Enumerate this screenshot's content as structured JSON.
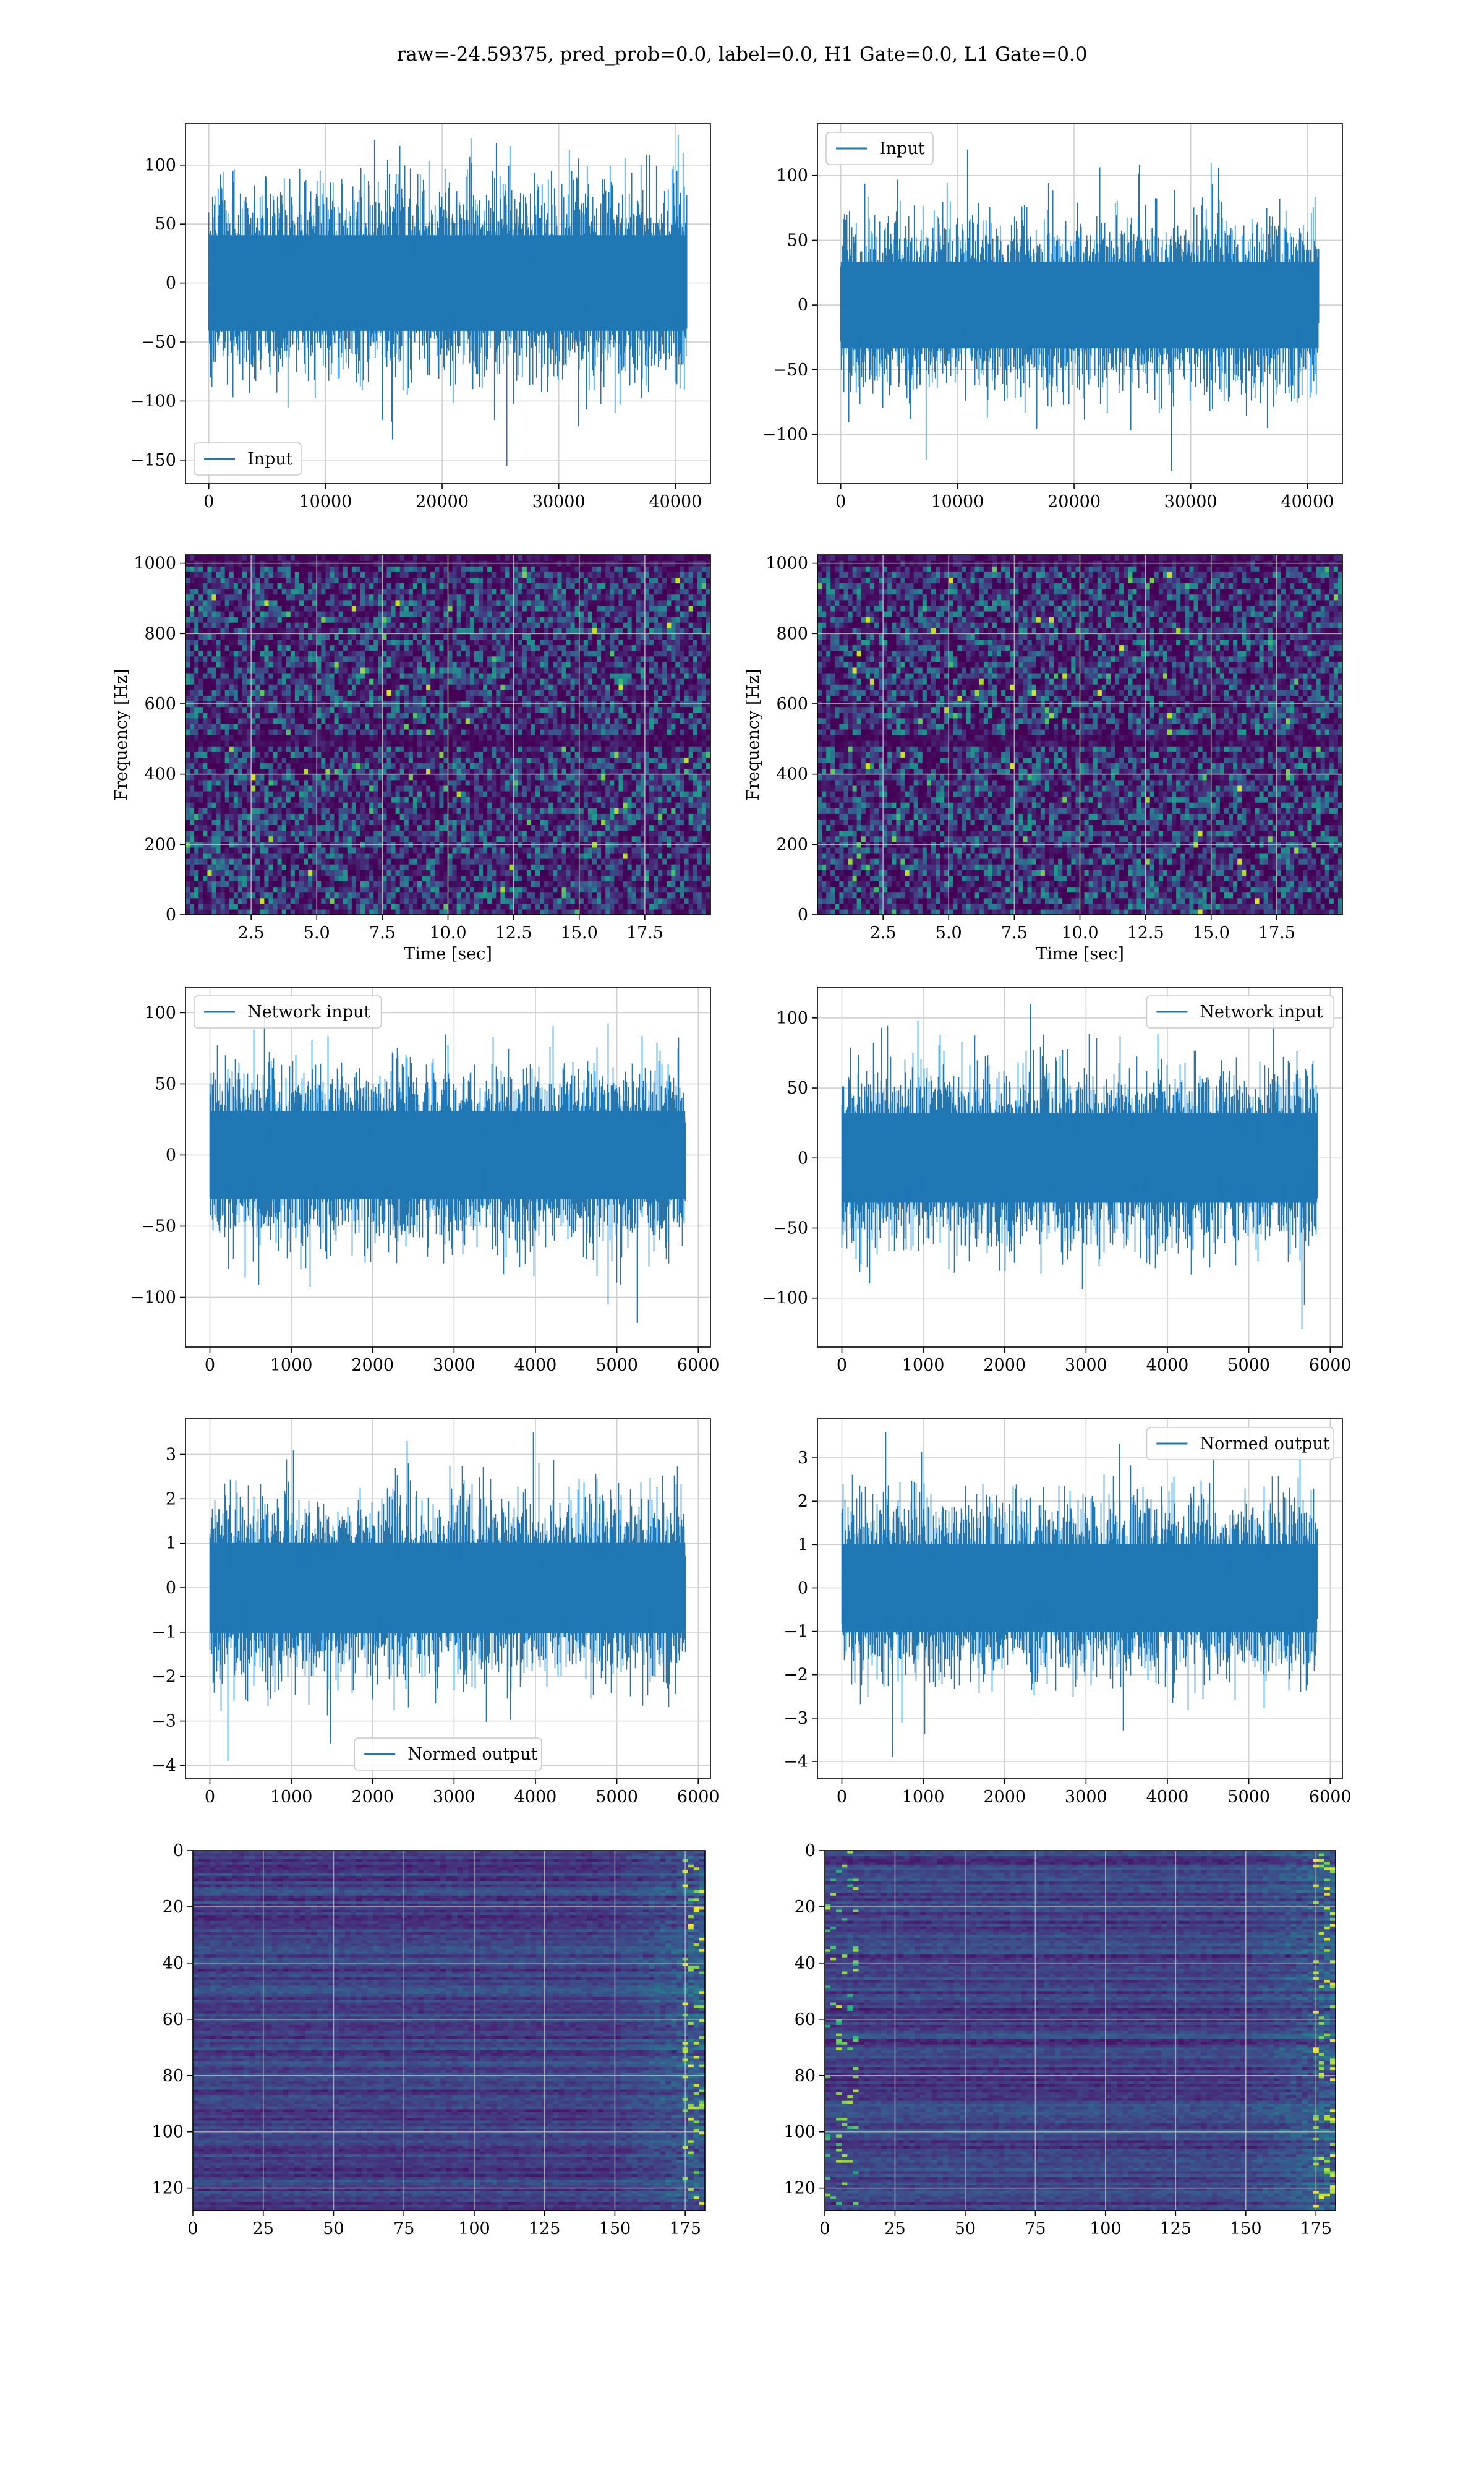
{
  "figure": {
    "title": "raw=-24.59375, pred_prob=0.0, label=0.0, H1 Gate=0.0, L1 Gate=0.0"
  },
  "colors": {
    "line": "#1f77b4",
    "grid": "#d0d0d0",
    "axes": "#000000",
    "viridis_low": "#440154",
    "viridis_mid": "#21918c",
    "viridis_high": "#fde725"
  },
  "chart_data": [
    {
      "id": "input-left",
      "type": "line",
      "legend": "Input",
      "legend_pos": "lower-left",
      "xlim": [
        -2000,
        43000
      ],
      "ylim": [
        -170,
        135
      ],
      "xticks": [
        0,
        10000,
        20000,
        30000,
        40000
      ],
      "yticks": [
        -150,
        -100,
        -50,
        0,
        50,
        100
      ],
      "n_points": 40960,
      "x_range": [
        0,
        40960
      ],
      "y_min": -155,
      "y_max": 125,
      "grid": true
    },
    {
      "id": "input-right",
      "type": "line",
      "legend": "Input",
      "legend_pos": "upper-left",
      "xlim": [
        -2000,
        43000
      ],
      "ylim": [
        -138,
        140
      ],
      "xticks": [
        0,
        10000,
        20000,
        30000,
        40000
      ],
      "yticks": [
        -100,
        -50,
        0,
        50,
        100
      ],
      "n_points": 40960,
      "x_range": [
        0,
        40960
      ],
      "y_min": -128,
      "y_max": 120,
      "grid": true
    },
    {
      "id": "spectrogram-left",
      "type": "heatmap",
      "xlabel": "Time [sec]",
      "ylabel": "Frequency [Hz]",
      "xlim": [
        0,
        20
      ],
      "ylim": [
        0,
        1024
      ],
      "xticks": [
        2.5,
        5.0,
        7.5,
        10.0,
        12.5,
        15.0,
        17.5
      ],
      "yticks": [
        0,
        200,
        400,
        600,
        800,
        1000
      ],
      "colormap": "viridis",
      "dark_bands_hz": [
        495,
        1005
      ],
      "grid": true
    },
    {
      "id": "spectrogram-right",
      "type": "heatmap",
      "xlabel": "Time [sec]",
      "ylabel": "Frequency [Hz]",
      "xlim": [
        0,
        20
      ],
      "ylim": [
        0,
        1024
      ],
      "xticks": [
        2.5,
        5.0,
        7.5,
        10.0,
        12.5,
        15.0,
        17.5
      ],
      "yticks": [
        0,
        200,
        400,
        600,
        800,
        1000
      ],
      "colormap": "viridis",
      "dark_bands_hz": [
        495,
        1005
      ],
      "grid": true
    },
    {
      "id": "network-input-left",
      "type": "line",
      "legend": "Network input",
      "legend_pos": "upper-left",
      "xlim": [
        -300,
        6150
      ],
      "ylim": [
        -135,
        118
      ],
      "xticks": [
        0,
        1000,
        2000,
        3000,
        4000,
        5000,
        6000
      ],
      "yticks": [
        -100,
        -50,
        0,
        50,
        100
      ],
      "n_points": 5840,
      "x_range": [
        0,
        5840
      ],
      "y_min": -118,
      "y_max": 106,
      "grid": true
    },
    {
      "id": "network-input-right",
      "type": "line",
      "legend": "Network input",
      "legend_pos": "upper-right",
      "xlim": [
        -300,
        6150
      ],
      "ylim": [
        -135,
        122
      ],
      "xticks": [
        0,
        1000,
        2000,
        3000,
        4000,
        5000,
        6000
      ],
      "yticks": [
        -100,
        -50,
        0,
        50,
        100
      ],
      "n_points": 5840,
      "x_range": [
        0,
        5840
      ],
      "y_min": -122,
      "y_max": 110,
      "grid": true
    },
    {
      "id": "normed-output-left",
      "type": "line",
      "legend": "Normed output",
      "legend_pos": "lower-center",
      "xlim": [
        -300,
        6150
      ],
      "ylim": [
        -4.3,
        3.8
      ],
      "xticks": [
        0,
        1000,
        2000,
        3000,
        4000,
        5000,
        6000
      ],
      "yticks": [
        -4,
        -3,
        -2,
        -1,
        0,
        1,
        2,
        3
      ],
      "n_points": 5840,
      "x_range": [
        0,
        5840
      ],
      "y_min": -3.9,
      "y_max": 3.5,
      "grid": true
    },
    {
      "id": "normed-output-right",
      "type": "line",
      "legend": "Normed output",
      "legend_pos": "upper-right",
      "xlim": [
        -300,
        6150
      ],
      "ylim": [
        -4.4,
        3.9
      ],
      "xticks": [
        0,
        1000,
        2000,
        3000,
        4000,
        5000,
        6000
      ],
      "yticks": [
        -4,
        -3,
        -2,
        -1,
        0,
        1,
        2,
        3
      ],
      "n_points": 5840,
      "x_range": [
        0,
        5840
      ],
      "y_min": -3.9,
      "y_max": 3.6,
      "grid": true
    },
    {
      "id": "features-left",
      "type": "heatmap",
      "xlim": [
        0,
        182
      ],
      "ylim": [
        0,
        128
      ],
      "y_inverted": true,
      "xticks": [
        0,
        25,
        50,
        75,
        100,
        125,
        150,
        175
      ],
      "yticks": [
        0,
        20,
        40,
        60,
        80,
        100,
        120
      ],
      "colormap": "viridis",
      "rows": 128,
      "cols": 182,
      "grid": true
    },
    {
      "id": "features-right",
      "type": "heatmap",
      "xlim": [
        0,
        182
      ],
      "ylim": [
        0,
        128
      ],
      "y_inverted": true,
      "xticks": [
        0,
        25,
        50,
        75,
        100,
        125,
        150,
        175
      ],
      "yticks": [
        0,
        20,
        40,
        60,
        80,
        100,
        120
      ],
      "colormap": "viridis",
      "rows": 128,
      "cols": 182,
      "grid": true
    }
  ]
}
